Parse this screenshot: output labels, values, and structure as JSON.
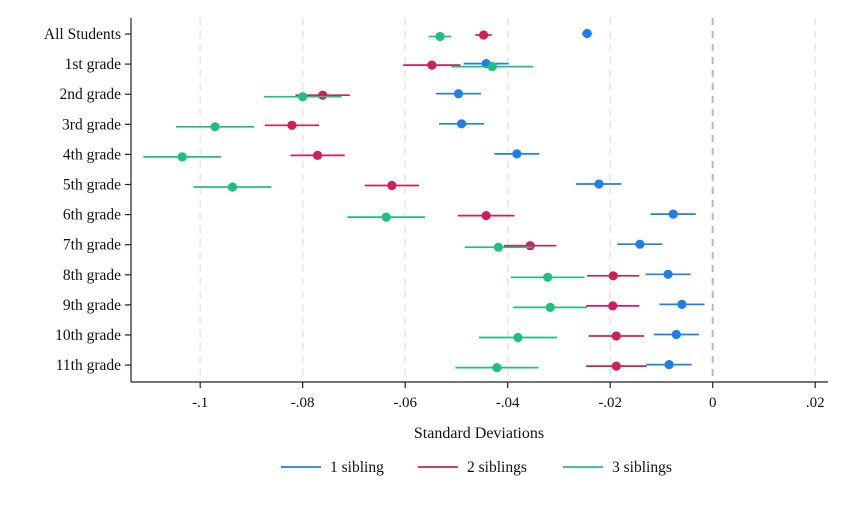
{
  "chart_data": {
    "type": "scatter",
    "title": "",
    "xlabel": "Standard Deviations",
    "ylabel": "",
    "xlim": [
      -0.1135,
      0.0225
    ],
    "xticks": [
      -0.1,
      -0.08,
      -0.06,
      -0.04,
      -0.02,
      0,
      0.02
    ],
    "xtick_labels": [
      "-.1",
      "-.08",
      "-.06",
      "-.04",
      "-.02",
      "0",
      ".02"
    ],
    "vertical_grid": "dashed",
    "reference_line_x": 0,
    "legend_position": "bottom",
    "categories": [
      "All Students",
      "1st grade",
      "2nd grade",
      "3rd grade",
      "4th grade",
      "5th grade",
      "6th grade",
      "7th grade",
      "8th grade",
      "9th grade",
      "10th grade",
      "11th grade"
    ],
    "series": [
      {
        "name": "1 sibling",
        "color": "#1f7fe8",
        "points": [
          {
            "estimate": -0.0245,
            "ci": [
              -0.0255,
              -0.0235
            ]
          },
          {
            "estimate": -0.0442,
            "ci": [
              -0.0486,
              -0.0398
            ]
          },
          {
            "estimate": -0.0496,
            "ci": [
              -0.054,
              -0.0452
            ]
          },
          {
            "estimate": -0.049,
            "ci": [
              -0.0534,
              -0.0446
            ]
          },
          {
            "estimate": -0.0382,
            "ci": [
              -0.0426,
              -0.0338
            ]
          },
          {
            "estimate": -0.0222,
            "ci": [
              -0.0267,
              -0.0178
            ]
          },
          {
            "estimate": -0.0077,
            "ci": [
              -0.0121,
              -0.0033
            ]
          },
          {
            "estimate": -0.0142,
            "ci": [
              -0.0186,
              -0.0098
            ]
          },
          {
            "estimate": -0.0087,
            "ci": [
              -0.0131,
              -0.0043
            ]
          },
          {
            "estimate": -0.006,
            "ci": [
              -0.0104,
              -0.0016
            ]
          },
          {
            "estimate": -0.0071,
            "ci": [
              -0.0115,
              -0.0027
            ]
          },
          {
            "estimate": -0.0085,
            "ci": [
              -0.013,
              -0.0041
            ]
          }
        ]
      },
      {
        "name": "2 siblings",
        "color": "#cc1f5c",
        "points": [
          {
            "estimate": -0.0447,
            "ci": [
              -0.0463,
              -0.0431
            ]
          },
          {
            "estimate": -0.0548,
            "ci": [
              -0.0604,
              -0.0492
            ]
          },
          {
            "estimate": -0.0761,
            "ci": [
              -0.0814,
              -0.0708
            ]
          },
          {
            "estimate": -0.0821,
            "ci": [
              -0.0874,
              -0.0768
            ]
          },
          {
            "estimate": -0.0771,
            "ci": [
              -0.0824,
              -0.0718
            ]
          },
          {
            "estimate": -0.0626,
            "ci": [
              -0.0679,
              -0.0573
            ]
          },
          {
            "estimate": -0.0442,
            "ci": [
              -0.0497,
              -0.0387
            ]
          },
          {
            "estimate": -0.0356,
            "ci": [
              -0.0407,
              -0.0305
            ]
          },
          {
            "estimate": -0.0194,
            "ci": [
              -0.0245,
              -0.0143
            ]
          },
          {
            "estimate": -0.0195,
            "ci": [
              -0.0247,
              -0.0143
            ]
          },
          {
            "estimate": -0.0188,
            "ci": [
              -0.0242,
              -0.0134
            ]
          },
          {
            "estimate": -0.0188,
            "ci": [
              -0.0247,
              -0.0129
            ]
          }
        ]
      },
      {
        "name": "3 siblings",
        "color": "#1fbf7f",
        "points": [
          {
            "estimate": -0.0532,
            "ci": [
              -0.0554,
              -0.051
            ]
          },
          {
            "estimate": -0.043,
            "ci": [
              -0.051,
              -0.035
            ]
          },
          {
            "estimate": -0.08,
            "ci": [
              -0.0876,
              -0.0724
            ]
          },
          {
            "estimate": -0.0971,
            "ci": [
              -0.1047,
              -0.0895
            ]
          },
          {
            "estimate": -0.1035,
            "ci": [
              -0.1111,
              -0.0959
            ]
          },
          {
            "estimate": -0.0937,
            "ci": [
              -0.1013,
              -0.0861
            ]
          },
          {
            "estimate": -0.0637,
            "ci": [
              -0.0713,
              -0.0561
            ]
          },
          {
            "estimate": -0.0418,
            "ci": [
              -0.0484,
              -0.0352
            ]
          },
          {
            "estimate": -0.0322,
            "ci": [
              -0.0394,
              -0.025
            ]
          },
          {
            "estimate": -0.0317,
            "ci": [
              -0.0389,
              -0.0245
            ]
          },
          {
            "estimate": -0.038,
            "ci": [
              -0.0456,
              -0.0304
            ]
          },
          {
            "estimate": -0.0421,
            "ci": [
              -0.0502,
              -0.034
            ]
          }
        ]
      }
    ]
  }
}
